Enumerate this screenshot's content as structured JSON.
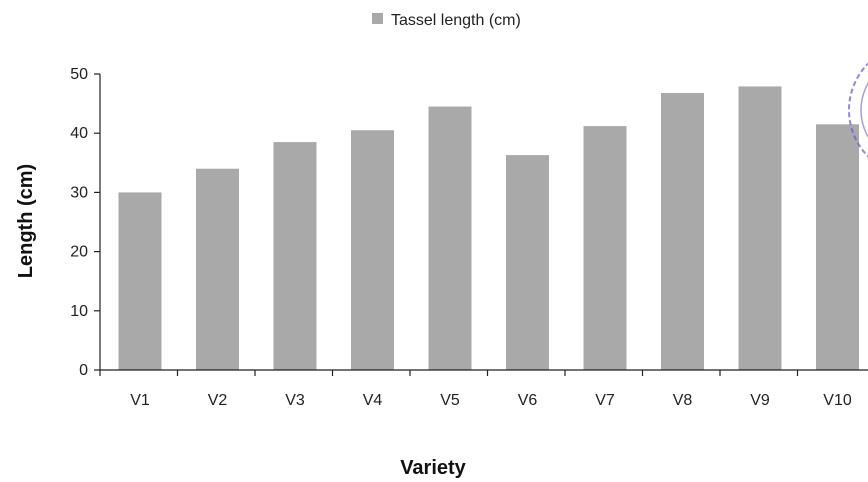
{
  "chart_data": {
    "type": "bar",
    "categories": [
      "V1",
      "V2",
      "V3",
      "V4",
      "V5",
      "V6",
      "V7",
      "V8",
      "V9",
      "V10"
    ],
    "series": [
      {
        "name": "Tassel length (cm)",
        "values": [
          30,
          34,
          38.5,
          40.5,
          44.5,
          36.3,
          41.2,
          46.8,
          47.9,
          41.5
        ]
      }
    ],
    "xlabel": "Variety",
    "ylabel": "Length (cm)",
    "ylim": [
      0,
      50
    ],
    "yticks": [
      "0",
      "10",
      "20",
      "30",
      "40",
      "50"
    ],
    "legend_position": "top",
    "grid": false,
    "bar_color": "#a9a9a9",
    "axis_color": "#222222"
  },
  "stamp": {
    "icon": "seal-stamp-icon",
    "color": "#6b5fd3"
  }
}
